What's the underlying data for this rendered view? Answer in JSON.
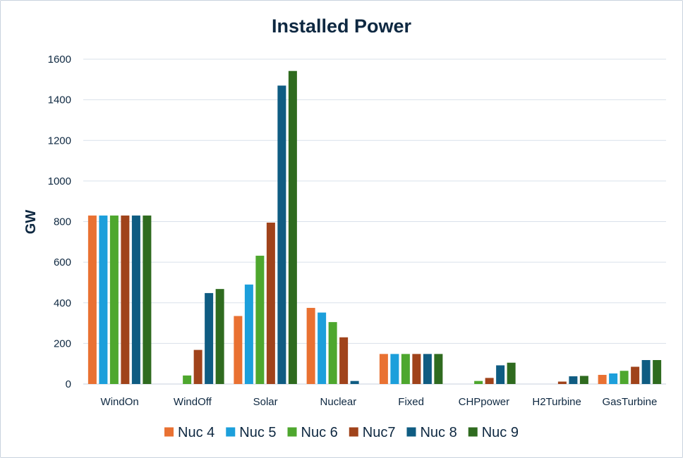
{
  "chart_data": {
    "type": "bar",
    "title": "Installed Power",
    "xlabel": "",
    "ylabel": "GW",
    "ylim": [
      0,
      1600
    ],
    "yticks": [
      0,
      200,
      400,
      600,
      800,
      1000,
      1200,
      1400,
      1600
    ],
    "grid": true,
    "legend_position": "bottom",
    "categories": [
      "WindOn",
      "WindOff",
      "Solar",
      "Nuclear",
      "Fixed",
      "CHPpower",
      "H2Turbine",
      "GasTurbine"
    ],
    "series": [
      {
        "name": "Nuc 4",
        "color": "#e97132",
        "values": [
          830,
          0,
          335,
          375,
          148,
          0,
          0,
          45
        ]
      },
      {
        "name": "Nuc 5",
        "color": "#1c9fdb",
        "values": [
          830,
          0,
          490,
          352,
          148,
          0,
          0,
          52
        ]
      },
      {
        "name": "Nuc 6",
        "color": "#4ea72e",
        "values": [
          830,
          42,
          632,
          305,
          148,
          15,
          0,
          65
        ]
      },
      {
        "name": "Nuc7",
        "color": "#a0431b",
        "values": [
          830,
          168,
          795,
          230,
          148,
          30,
          12,
          85
        ]
      },
      {
        "name": "Nuc 8",
        "color": "#0f5c82",
        "values": [
          830,
          448,
          1470,
          15,
          148,
          92,
          38,
          118
        ]
      },
      {
        "name": "Nuc 9",
        "color": "#2f6b1f",
        "values": [
          830,
          468,
          1542,
          0,
          148,
          105,
          40,
          118
        ]
      }
    ]
  }
}
